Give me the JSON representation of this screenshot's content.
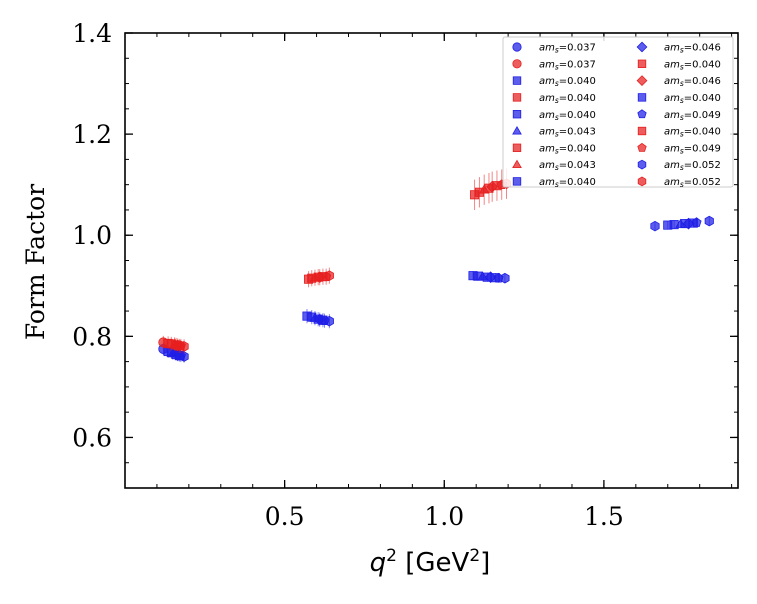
{
  "chart_data": {
    "type": "scatter",
    "title": "",
    "ylabel": "Form Factor",
    "xlabel": {
      "var": "q",
      "sup": "2",
      "unit_open": "[GeV",
      "unit_sup": "2",
      "unit_close": "]"
    },
    "xlim": [
      0.0,
      1.92
    ],
    "ylim": [
      0.5,
      1.4
    ],
    "xticks": [
      0.5,
      1.0,
      1.5
    ],
    "xtick_labels": [
      "0.5",
      "1.0",
      "1.5"
    ],
    "yticks": [
      0.6,
      0.8,
      1.0,
      1.2,
      1.4
    ],
    "ytick_labels": [
      "0.6",
      "0.8",
      "1.0",
      "1.2",
      "1.4"
    ],
    "legend_position": "top-right",
    "legend_label_prefix": "am",
    "legend_label_sub": "s",
    "colors": {
      "blue": "#1f1fe6",
      "red": "#e61f1f"
    },
    "series": [
      {
        "label": "=0.037",
        "color": "blue",
        "marker": "circle",
        "x": [
          0.12
        ],
        "y": [
          0.775
        ],
        "err": [
          0.012
        ]
      },
      {
        "label": "=0.037",
        "color": "red",
        "marker": "circle",
        "x": [
          0.12
        ],
        "y": [
          0.788
        ],
        "err": [
          0.013
        ]
      },
      {
        "label": "=0.040",
        "color": "blue",
        "marker": "square",
        "x": [
          0.135,
          0.57,
          1.09,
          1.7
        ],
        "y": [
          0.77,
          0.84,
          0.92,
          1.02
        ],
        "err": [
          0.012,
          0.014,
          0.009,
          0.008
        ]
      },
      {
        "label": "=0.040",
        "color": "red",
        "marker": "square",
        "x": [
          0.135,
          0.575,
          1.095
        ],
        "y": [
          0.786,
          0.913,
          1.08
        ],
        "err": [
          0.014,
          0.016,
          0.03
        ]
      },
      {
        "label": "=0.040",
        "color": "blue",
        "marker": "square",
        "x": [
          0.145,
          0.585,
          1.105,
          1.72
        ],
        "y": [
          0.768,
          0.838,
          0.919,
          1.021
        ],
        "err": [
          0.012,
          0.014,
          0.009,
          0.008
        ]
      },
      {
        "label": "=0.043",
        "color": "blue",
        "marker": "triangle",
        "x": [
          0.15,
          0.595,
          1.12,
          1.74
        ],
        "y": [
          0.766,
          0.836,
          0.918,
          1.022
        ],
        "err": [
          0.012,
          0.014,
          0.009,
          0.008
        ]
      },
      {
        "label": "=0.040",
        "color": "red",
        "marker": "square",
        "x": [
          0.145,
          0.585,
          1.11
        ],
        "y": [
          0.785,
          0.915,
          1.085
        ],
        "err": [
          0.014,
          0.016,
          0.03
        ]
      },
      {
        "label": "=0.043",
        "color": "red",
        "marker": "triangle",
        "x": [
          0.155,
          0.595,
          1.125
        ],
        "y": [
          0.784,
          0.916,
          1.09
        ],
        "err": [
          0.014,
          0.016,
          0.03
        ]
      },
      {
        "label": "=0.040",
        "color": "blue",
        "marker": "square",
        "x": [
          0.16,
          0.605,
          1.135,
          1.755
        ],
        "y": [
          0.764,
          0.834,
          0.917,
          1.023
        ],
        "err": [
          0.012,
          0.014,
          0.009,
          0.008
        ]
      },
      {
        "label": "=0.046",
        "color": "blue",
        "marker": "diamond",
        "x": [
          0.165,
          0.61,
          1.145,
          1.765
        ],
        "y": [
          0.763,
          0.833,
          0.917,
          1.023
        ],
        "err": [
          0.012,
          0.014,
          0.009,
          0.008
        ]
      },
      {
        "label": "=0.040",
        "color": "red",
        "marker": "square",
        "x": [
          0.16,
          0.605,
          1.14
        ],
        "y": [
          0.783,
          0.917,
          1.093
        ],
        "err": [
          0.014,
          0.016,
          0.03
        ]
      },
      {
        "label": "=0.046",
        "color": "red",
        "marker": "diamond",
        "x": [
          0.165,
          0.61,
          1.15
        ],
        "y": [
          0.782,
          0.917,
          1.096
        ],
        "err": [
          0.014,
          0.016,
          0.03
        ]
      },
      {
        "label": "=0.040",
        "color": "blue",
        "marker": "square",
        "x": [
          0.17,
          0.62,
          1.16,
          1.78
        ],
        "y": [
          0.762,
          0.832,
          0.916,
          1.024
        ],
        "err": [
          0.012,
          0.014,
          0.009,
          0.008
        ]
      },
      {
        "label": "=0.049",
        "color": "blue",
        "marker": "pentagon",
        "x": [
          0.175,
          0.625,
          1.17,
          1.79
        ],
        "y": [
          0.761,
          0.831,
          0.915,
          1.025
        ],
        "err": [
          0.012,
          0.014,
          0.009,
          0.008
        ]
      },
      {
        "label": "=0.040",
        "color": "red",
        "marker": "square",
        "x": [
          0.17,
          0.62,
          1.165
        ],
        "y": [
          0.781,
          0.918,
          1.098
        ],
        "err": [
          0.014,
          0.016,
          0.03
        ]
      },
      {
        "label": "=0.049",
        "color": "red",
        "marker": "pentagon",
        "x": [
          0.175,
          0.63,
          1.18
        ],
        "y": [
          0.781,
          0.918,
          1.1
        ],
        "err": [
          0.014,
          0.016,
          0.03
        ]
      },
      {
        "label": "=0.052",
        "color": "blue",
        "marker": "hexagon",
        "x": [
          0.185,
          0.64,
          1.19,
          1.66,
          1.83
        ],
        "y": [
          0.76,
          0.83,
          0.915,
          1.018,
          1.028
        ],
        "err": [
          0.012,
          0.014,
          0.009,
          0.008,
          0.008
        ]
      },
      {
        "label": "=0.052",
        "color": "red",
        "marker": "hexagon",
        "x": [
          0.185,
          0.64,
          1.195
        ],
        "y": [
          0.78,
          0.92,
          1.102
        ],
        "err": [
          0.014,
          0.016,
          0.03
        ]
      }
    ]
  }
}
